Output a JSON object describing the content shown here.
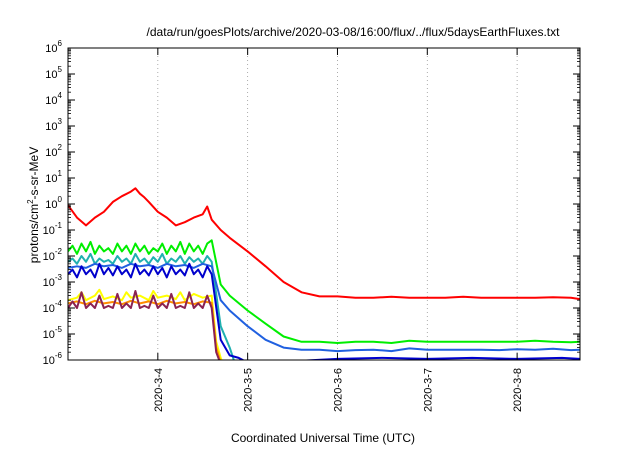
{
  "chart_data": {
    "type": "line",
    "title": "/data/run/goesPlots/archive/2020-03-08/16:00/flux/../flux/5daysEarthFluxes.txt",
    "xlabel": "Coordinated Universal Time (UTC)",
    "ylabel_parts": {
      "base": "protons/cm",
      "sup": "2",
      "rest": "-s-sr-MeV"
    },
    "y_scale": "log",
    "ylim": [
      1e-06,
      1000000.0
    ],
    "xlim": [
      3.0,
      8.7
    ],
    "grid": true,
    "grid_style": "dotted",
    "legend": "none",
    "y_ticks": [
      {
        "value": 1e-06,
        "base": "10",
        "exp": "-6"
      },
      {
        "value": 1e-05,
        "base": "10",
        "exp": "-5"
      },
      {
        "value": 0.0001,
        "base": "10",
        "exp": "-4"
      },
      {
        "value": 0.001,
        "base": "10",
        "exp": "-3"
      },
      {
        "value": 0.01,
        "base": "10",
        "exp": "-2"
      },
      {
        "value": 0.1,
        "base": "10",
        "exp": "-1"
      },
      {
        "value": 1,
        "base": "10",
        "exp": "0"
      },
      {
        "value": 10.0,
        "base": "10",
        "exp": "1"
      },
      {
        "value": 100.0,
        "base": "10",
        "exp": "2"
      },
      {
        "value": 1000.0,
        "base": "10",
        "exp": "3"
      },
      {
        "value": 10000.0,
        "base": "10",
        "exp": "4"
      },
      {
        "value": 100000.0,
        "base": "10",
        "exp": "5"
      },
      {
        "value": 1000000.0,
        "base": "10",
        "exp": "6"
      }
    ],
    "x_ticks": [
      {
        "value": 4,
        "label": "2020-3-4"
      },
      {
        "value": 5,
        "label": "2020-3-5"
      },
      {
        "value": 6,
        "label": "2020-3-6"
      },
      {
        "value": 7,
        "label": "2020-3-7"
      },
      {
        "value": 8,
        "label": "2020-3-8"
      }
    ],
    "series": [
      {
        "color": "#ff0000",
        "x": [
          3.0,
          3.1,
          3.2,
          3.3,
          3.4,
          3.5,
          3.6,
          3.7,
          3.75,
          3.8,
          3.85,
          3.9,
          4.0,
          4.1,
          4.2,
          4.3,
          4.4,
          4.5,
          4.55,
          4.6,
          4.7,
          4.8,
          5.0,
          5.2,
          5.4,
          5.6,
          5.8,
          6.0,
          6.2,
          6.4,
          6.6,
          6.8,
          7.0,
          7.2,
          7.4,
          7.6,
          7.8,
          8.0,
          8.2,
          8.4,
          8.6,
          8.7
        ],
        "y": [
          0.9,
          0.3,
          0.15,
          0.3,
          0.5,
          1.2,
          2.0,
          3.0,
          4.0,
          2.5,
          1.8,
          1.2,
          0.5,
          0.3,
          0.15,
          0.2,
          0.3,
          0.4,
          0.8,
          0.25,
          0.1,
          0.05,
          0.015,
          0.004,
          0.001,
          0.0004,
          0.00028,
          0.00028,
          0.00025,
          0.00025,
          0.00027,
          0.00025,
          0.00025,
          0.00025,
          0.00027,
          0.00025,
          0.00025,
          0.00025,
          0.00025,
          0.00026,
          0.00025,
          0.00022
        ]
      },
      {
        "color": "#00ee00",
        "x": [
          3.0,
          3.05,
          3.1,
          3.15,
          3.2,
          3.25,
          3.3,
          3.35,
          3.4,
          3.45,
          3.5,
          3.55,
          3.6,
          3.65,
          3.7,
          3.75,
          3.8,
          3.85,
          3.9,
          3.95,
          4.0,
          4.05,
          4.1,
          4.15,
          4.2,
          4.25,
          4.3,
          4.35,
          4.4,
          4.45,
          4.5,
          4.55,
          4.6,
          4.7,
          4.8,
          5.0,
          5.2,
          5.4,
          5.6,
          5.8,
          6.0,
          6.2,
          6.4,
          6.6,
          6.8,
          7.0,
          7.2,
          7.4,
          7.6,
          7.8,
          8.0,
          8.2,
          8.4,
          8.6,
          8.7
        ],
        "y": [
          0.015,
          0.025,
          0.012,
          0.03,
          0.015,
          0.035,
          0.012,
          0.025,
          0.015,
          0.02,
          0.012,
          0.03,
          0.015,
          0.025,
          0.012,
          0.03,
          0.015,
          0.025,
          0.012,
          0.02,
          0.015,
          0.03,
          0.012,
          0.025,
          0.015,
          0.035,
          0.012,
          0.03,
          0.015,
          0.025,
          0.012,
          0.03,
          0.04,
          0.0008,
          0.0003,
          8e-05,
          2.5e-05,
          8e-06,
          5e-06,
          5e-06,
          4.5e-06,
          5e-06,
          5e-06,
          4.5e-06,
          5.5e-06,
          5e-06,
          5e-06,
          5e-06,
          5e-06,
          5e-06,
          5e-06,
          5.5e-06,
          5e-06,
          4.8e-06,
          5e-06
        ]
      },
      {
        "color": "#20b0b0",
        "x": [
          3.0,
          3.05,
          3.1,
          3.15,
          3.2,
          3.25,
          3.3,
          3.35,
          3.4,
          3.45,
          3.5,
          3.55,
          3.6,
          3.65,
          3.7,
          3.75,
          3.8,
          3.85,
          3.9,
          3.95,
          4.0,
          4.05,
          4.1,
          4.15,
          4.2,
          4.25,
          4.3,
          4.35,
          4.4,
          4.45,
          4.5,
          4.55,
          4.6,
          4.7,
          4.8,
          4.85
        ],
        "y": [
          0.006,
          0.008,
          0.005,
          0.01,
          0.006,
          0.012,
          0.005,
          0.008,
          0.006,
          0.007,
          0.005,
          0.01,
          0.006,
          0.008,
          0.005,
          0.012,
          0.006,
          0.008,
          0.005,
          0.009,
          0.006,
          0.012,
          0.005,
          0.008,
          0.006,
          0.01,
          0.005,
          0.009,
          0.006,
          0.008,
          0.005,
          0.01,
          0.006,
          2e-05,
          3e-06,
          9e-07
        ]
      },
      {
        "color": "#2060e0",
        "x": [
          3.0,
          3.1,
          3.2,
          3.3,
          3.4,
          3.5,
          3.6,
          3.7,
          3.8,
          3.9,
          4.0,
          4.1,
          4.2,
          4.3,
          4.4,
          4.5,
          4.6,
          4.7,
          4.8,
          5.0,
          5.2,
          5.4,
          5.6,
          5.8,
          6.0,
          6.2,
          6.4,
          6.6,
          6.8,
          7.0,
          7.2,
          7.4,
          7.6,
          7.8,
          8.0,
          8.2,
          8.4,
          8.6,
          8.7
        ],
        "y": [
          0.0035,
          0.004,
          0.0035,
          0.005,
          0.004,
          0.0045,
          0.0035,
          0.005,
          0.004,
          0.0045,
          0.0035,
          0.005,
          0.004,
          0.0045,
          0.0035,
          0.005,
          0.004,
          0.0002,
          8e-05,
          2e-05,
          6e-06,
          3e-06,
          2.5e-06,
          2.5e-06,
          2.2e-06,
          2.4e-06,
          2.5e-06,
          2.2e-06,
          2.8e-06,
          2.5e-06,
          2.5e-06,
          2.5e-06,
          2.5e-06,
          2.4e-06,
          2.6e-06,
          2.5e-06,
          2.7e-06,
          2.4e-06,
          2.5e-06
        ]
      },
      {
        "color": "#0000cc",
        "x": [
          3.0,
          3.05,
          3.1,
          3.15,
          3.2,
          3.25,
          3.3,
          3.35,
          3.4,
          3.45,
          3.5,
          3.55,
          3.6,
          3.65,
          3.7,
          3.75,
          3.8,
          3.85,
          3.9,
          3.95,
          4.0,
          4.05,
          4.1,
          4.15,
          4.2,
          4.25,
          4.3,
          4.35,
          4.4,
          4.45,
          4.5,
          4.55,
          4.6,
          4.7,
          4.8,
          4.9,
          5.0,
          5.5,
          6.0,
          6.5,
          7.0,
          7.5,
          8.0,
          8.5,
          8.7
        ],
        "y": [
          0.002,
          0.003,
          0.0015,
          0.004,
          0.002,
          0.003,
          0.0015,
          0.005,
          0.002,
          0.0035,
          0.0018,
          0.004,
          0.002,
          0.003,
          0.0015,
          0.005,
          0.002,
          0.003,
          0.0018,
          0.004,
          0.002,
          0.0035,
          0.0015,
          0.004,
          0.002,
          0.003,
          0.0018,
          0.005,
          0.002,
          0.003,
          0.0015,
          0.004,
          0.002,
          6e-06,
          1.5e-06,
          1.2e-06,
          8e-07,
          9e-07,
          1.1e-06,
          1.2e-06,
          1.1e-06,
          1.2e-06,
          1.1e-06,
          1.2e-06,
          1.1e-06
        ]
      },
      {
        "color": "#ffff00",
        "x": [
          3.0,
          3.1,
          3.15,
          3.2,
          3.3,
          3.35,
          3.4,
          3.5,
          3.6,
          3.65,
          3.7,
          3.8,
          3.9,
          3.95,
          4.0,
          4.1,
          4.2,
          4.25,
          4.3,
          4.4,
          4.5,
          4.6,
          4.65,
          4.7,
          4.72
        ],
        "y": [
          0.0002,
          0.00025,
          0.0004,
          0.0002,
          0.0003,
          0.0005,
          0.00022,
          0.00028,
          0.0002,
          0.0004,
          0.00025,
          0.0003,
          0.0002,
          0.00045,
          0.00025,
          0.0003,
          0.00022,
          0.0004,
          0.0002,
          0.00035,
          0.00025,
          0.0003,
          5e-06,
          1.2e-06,
          8e-07
        ]
      },
      {
        "color": "#ff8c00",
        "x": [
          3.0,
          3.1,
          3.2,
          3.3,
          3.4,
          3.5,
          3.6,
          3.7,
          3.8,
          3.9,
          4.0,
          4.1,
          4.2,
          4.3,
          4.4,
          4.5,
          4.6,
          4.65,
          4.7
        ],
        "y": [
          0.00015,
          0.00018,
          0.00014,
          0.00019,
          0.00015,
          0.00017,
          0.00014,
          0.00019,
          0.00015,
          0.00018,
          0.00014,
          0.00019,
          0.00015,
          0.00017,
          0.00014,
          0.00018,
          0.00016,
          3e-06,
          8e-07
        ]
      },
      {
        "color": "#8b2252",
        "x": [
          3.0,
          3.05,
          3.1,
          3.15,
          3.2,
          3.25,
          3.3,
          3.35,
          3.4,
          3.45,
          3.5,
          3.55,
          3.6,
          3.65,
          3.7,
          3.75,
          3.8,
          3.85,
          3.9,
          3.95,
          4.0,
          4.05,
          4.1,
          4.15,
          4.2,
          4.25,
          4.3,
          4.35,
          4.4,
          4.45,
          4.5,
          4.55,
          4.6,
          4.65,
          4.7
        ],
        "y": [
          0.0001,
          0.00018,
          0.0001,
          0.0004,
          0.0001,
          0.00015,
          0.0001,
          0.0003,
          0.0001,
          0.00012,
          0.0001,
          0.00035,
          0.0001,
          0.00015,
          0.0001,
          0.00045,
          0.0001,
          0.00012,
          0.0001,
          0.0003,
          0.0001,
          0.00015,
          0.0001,
          0.00035,
          0.0001,
          0.00012,
          0.0001,
          0.0004,
          0.0001,
          0.00015,
          0.0001,
          0.0003,
          0.0001,
          2e-06,
          7e-07
        ]
      }
    ]
  }
}
